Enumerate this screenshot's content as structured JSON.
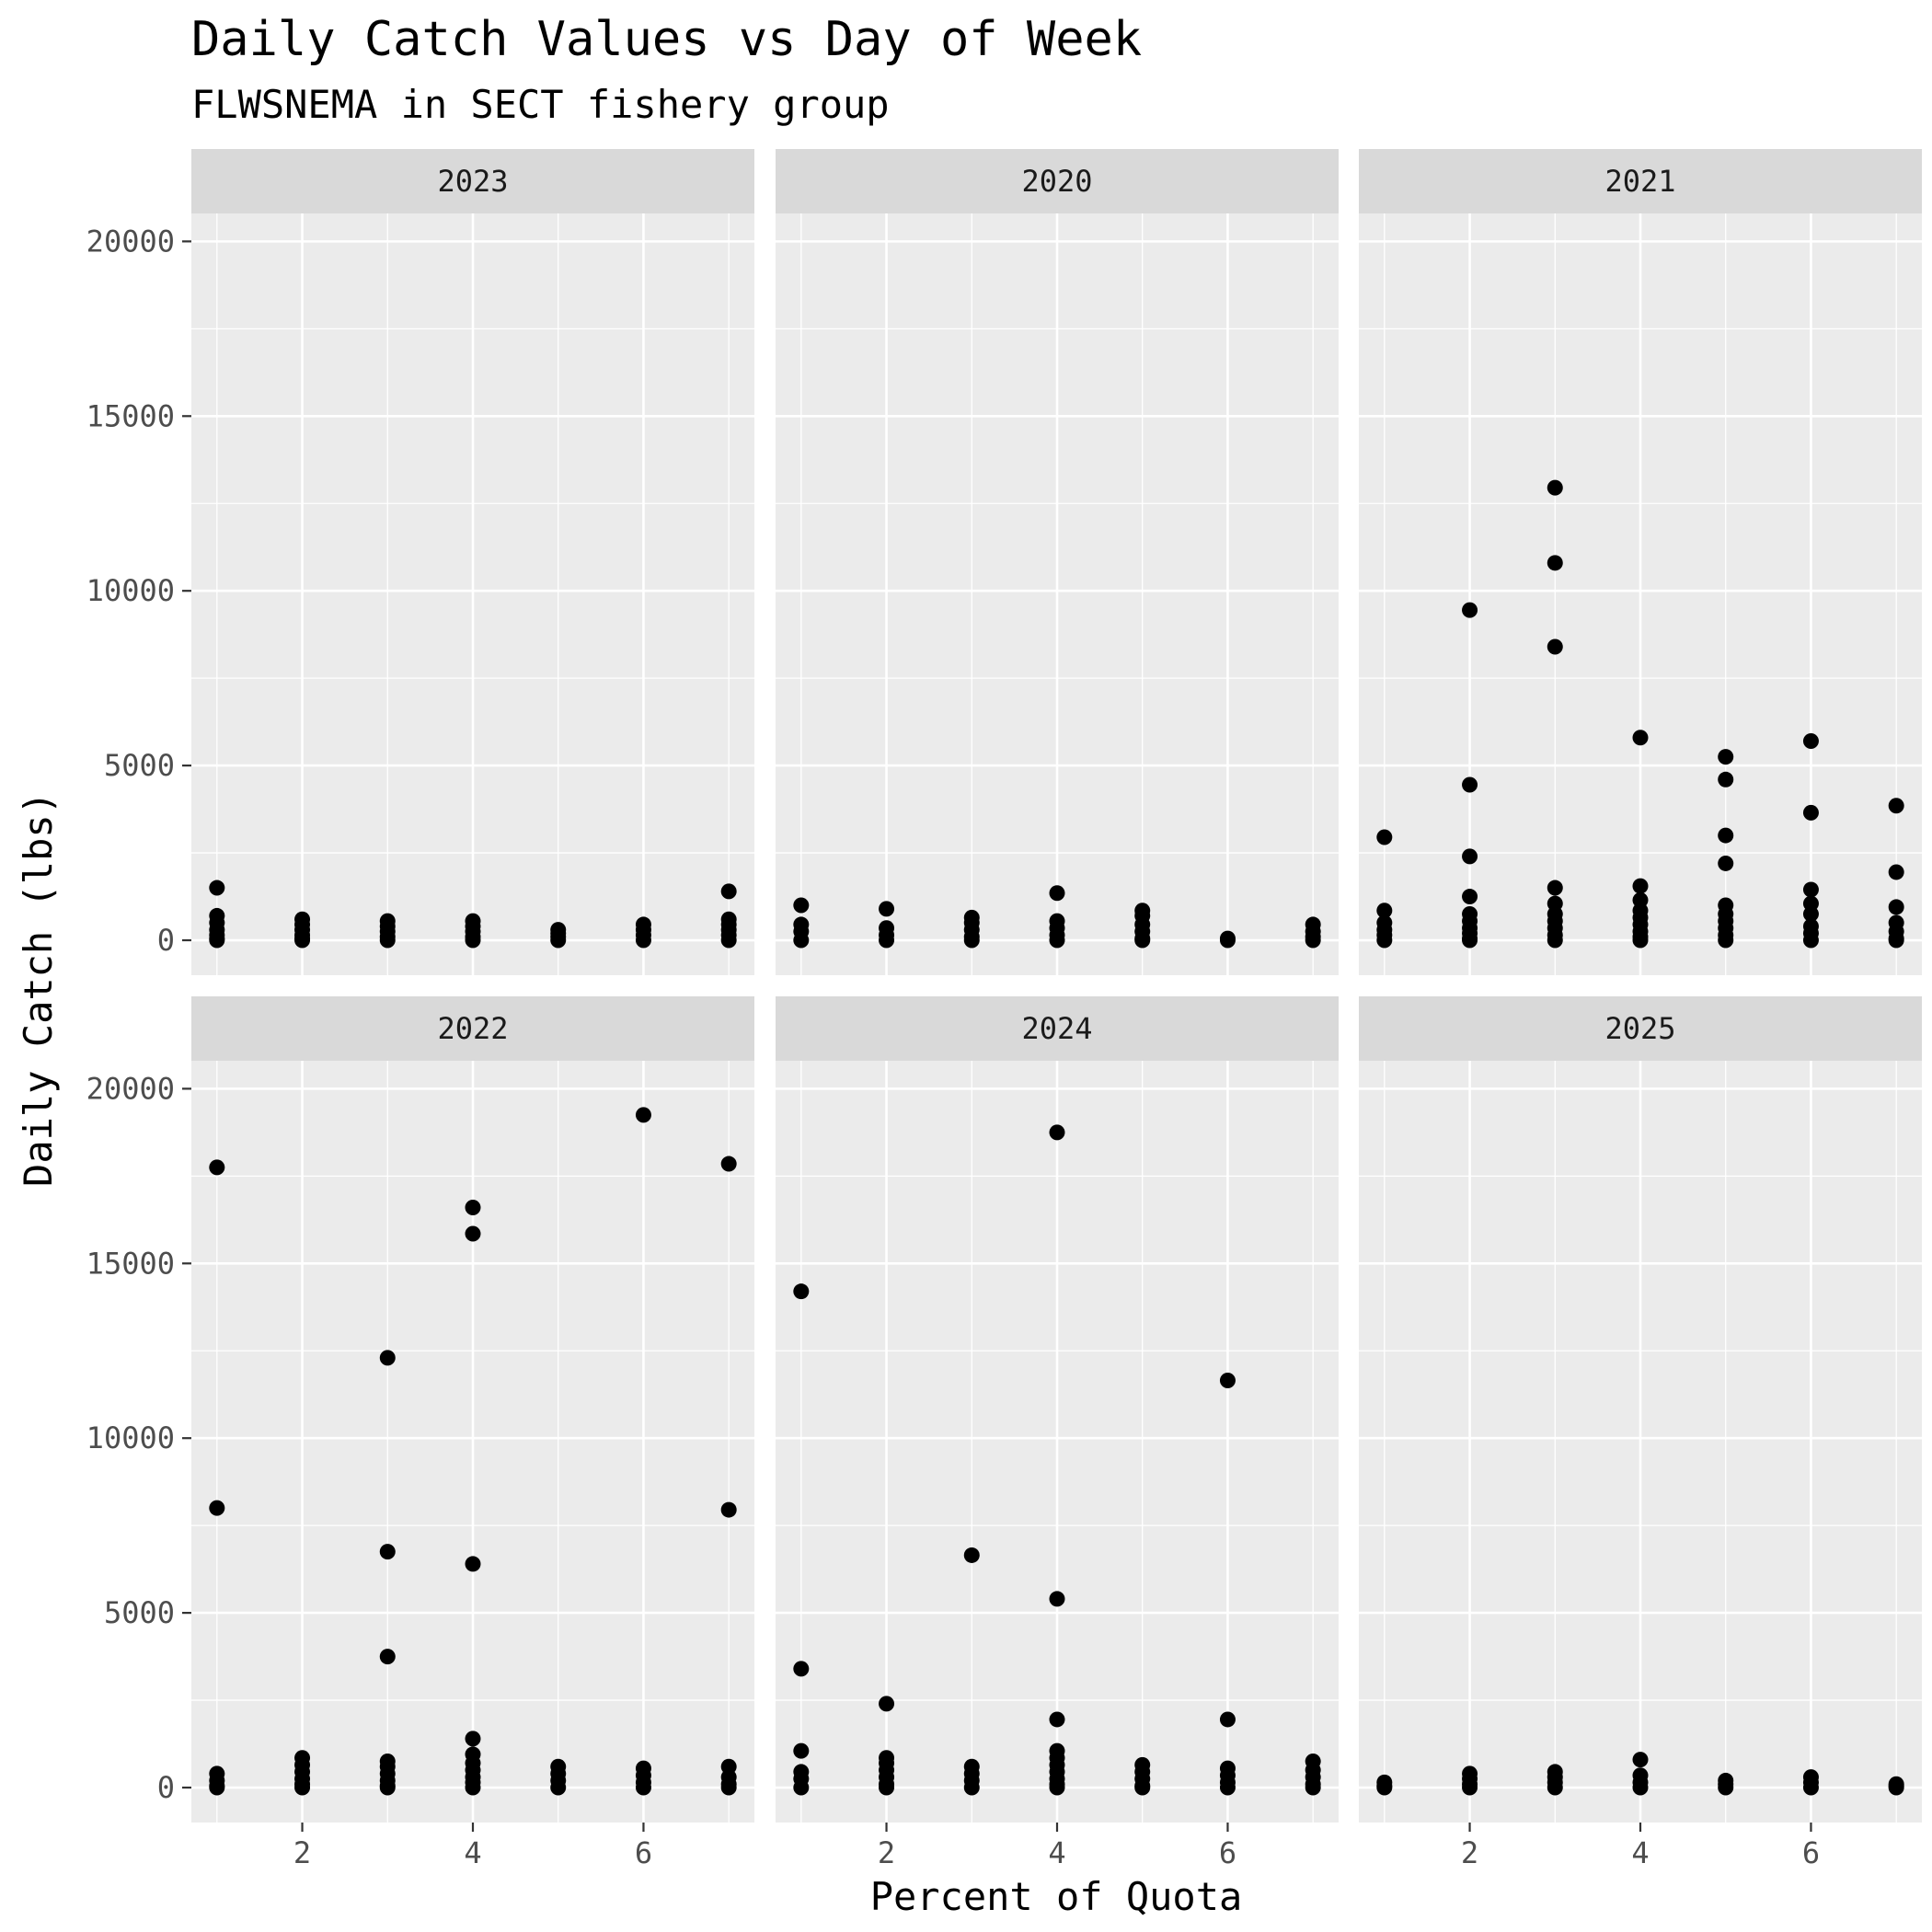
{
  "chart_data": {
    "type": "scatter",
    "title": "Daily Catch Values vs Day of Week",
    "subtitle": "FLWSNEMA in SECT fishery group",
    "xlabel": "Percent of Quota",
    "ylabel": "Daily Catch (lbs)",
    "xlim": [
      0.7,
      7.3
    ],
    "ylim": [
      -1000,
      20800
    ],
    "x_ticks": [
      2,
      4,
      6
    ],
    "y_ticks": [
      0,
      5000,
      10000,
      15000,
      20000
    ],
    "grid": true,
    "layout": "facets 2 rows x 3 columns",
    "colors": {
      "panel_bg": "#ebebeb",
      "strip_bg": "#d9d9d9",
      "grid": "#ffffff",
      "point": "#000000"
    },
    "panels": [
      {
        "label": "2023",
        "points": [
          [
            1,
            1500
          ],
          [
            1,
            700
          ],
          [
            1,
            500
          ],
          [
            1,
            300
          ],
          [
            1,
            150
          ],
          [
            1,
            50
          ],
          [
            1,
            0
          ],
          [
            2,
            600
          ],
          [
            2,
            450
          ],
          [
            2,
            300
          ],
          [
            2,
            150
          ],
          [
            2,
            50
          ],
          [
            2,
            0
          ],
          [
            3,
            550
          ],
          [
            3,
            400
          ],
          [
            3,
            250
          ],
          [
            3,
            100
          ],
          [
            3,
            0
          ],
          [
            4,
            550
          ],
          [
            4,
            400
          ],
          [
            4,
            250
          ],
          [
            4,
            100
          ],
          [
            4,
            0
          ],
          [
            5,
            300
          ],
          [
            5,
            200
          ],
          [
            5,
            100
          ],
          [
            5,
            0
          ],
          [
            6,
            450
          ],
          [
            6,
            300
          ],
          [
            6,
            150
          ],
          [
            6,
            0
          ],
          [
            7,
            1400
          ],
          [
            7,
            600
          ],
          [
            7,
            450
          ],
          [
            7,
            300
          ],
          [
            7,
            150
          ],
          [
            7,
            0
          ]
        ]
      },
      {
        "label": "2020",
        "points": [
          [
            1,
            1000
          ],
          [
            1,
            450
          ],
          [
            1,
            250
          ],
          [
            1,
            0
          ],
          [
            2,
            900
          ],
          [
            2,
            350
          ],
          [
            2,
            150
          ],
          [
            2,
            0
          ],
          [
            3,
            650
          ],
          [
            3,
            500
          ],
          [
            3,
            300
          ],
          [
            3,
            100
          ],
          [
            3,
            0
          ],
          [
            4,
            1350
          ],
          [
            4,
            550
          ],
          [
            4,
            350
          ],
          [
            4,
            150
          ],
          [
            4,
            0
          ],
          [
            5,
            850
          ],
          [
            5,
            700
          ],
          [
            5,
            450
          ],
          [
            5,
            250
          ],
          [
            5,
            50
          ],
          [
            5,
            0
          ],
          [
            6,
            50
          ],
          [
            6,
            0
          ],
          [
            7,
            450
          ],
          [
            7,
            250
          ],
          [
            7,
            100
          ],
          [
            7,
            0
          ]
        ]
      },
      {
        "label": "2021",
        "points": [
          [
            1,
            2950
          ],
          [
            1,
            850
          ],
          [
            1,
            500
          ],
          [
            1,
            300
          ],
          [
            1,
            150
          ],
          [
            1,
            0
          ],
          [
            2,
            9450
          ],
          [
            2,
            4450
          ],
          [
            2,
            2400
          ],
          [
            2,
            1250
          ],
          [
            2,
            750
          ],
          [
            2,
            550
          ],
          [
            2,
            350
          ],
          [
            2,
            200
          ],
          [
            2,
            50
          ],
          [
            2,
            0
          ],
          [
            3,
            12950
          ],
          [
            3,
            10800
          ],
          [
            3,
            8400
          ],
          [
            3,
            1500
          ],
          [
            3,
            1050
          ],
          [
            3,
            750
          ],
          [
            3,
            550
          ],
          [
            3,
            350
          ],
          [
            3,
            150
          ],
          [
            3,
            0
          ],
          [
            4,
            5800
          ],
          [
            4,
            1550
          ],
          [
            4,
            1150
          ],
          [
            4,
            850
          ],
          [
            4,
            650
          ],
          [
            4,
            450
          ],
          [
            4,
            250
          ],
          [
            4,
            100
          ],
          [
            4,
            0
          ],
          [
            5,
            5250
          ],
          [
            5,
            4600
          ],
          [
            5,
            3000
          ],
          [
            5,
            2200
          ],
          [
            5,
            1000
          ],
          [
            5,
            750
          ],
          [
            5,
            550
          ],
          [
            5,
            350
          ],
          [
            5,
            150
          ],
          [
            5,
            0
          ],
          [
            6,
            5700
          ],
          [
            6,
            3650
          ],
          [
            6,
            1450
          ],
          [
            6,
            1050
          ],
          [
            6,
            750
          ],
          [
            6,
            400
          ],
          [
            6,
            200
          ],
          [
            6,
            0
          ],
          [
            7,
            3850
          ],
          [
            7,
            1950
          ],
          [
            7,
            950
          ],
          [
            7,
            500
          ],
          [
            7,
            250
          ],
          [
            7,
            50
          ],
          [
            7,
            0
          ]
        ]
      },
      {
        "label": "2022",
        "points": [
          [
            1,
            17750
          ],
          [
            1,
            8000
          ],
          [
            1,
            400
          ],
          [
            1,
            200
          ],
          [
            1,
            50
          ],
          [
            1,
            0
          ],
          [
            2,
            850
          ],
          [
            2,
            650
          ],
          [
            2,
            450
          ],
          [
            2,
            250
          ],
          [
            2,
            100
          ],
          [
            2,
            0
          ],
          [
            3,
            12300
          ],
          [
            3,
            6750
          ],
          [
            3,
            3750
          ],
          [
            3,
            750
          ],
          [
            3,
            600
          ],
          [
            3,
            400
          ],
          [
            3,
            200
          ],
          [
            3,
            50
          ],
          [
            3,
            0
          ],
          [
            4,
            16600
          ],
          [
            4,
            15850
          ],
          [
            4,
            6400
          ],
          [
            4,
            1400
          ],
          [
            4,
            950
          ],
          [
            4,
            700
          ],
          [
            4,
            500
          ],
          [
            4,
            300
          ],
          [
            4,
            150
          ],
          [
            4,
            0
          ],
          [
            5,
            600
          ],
          [
            5,
            400
          ],
          [
            5,
            200
          ],
          [
            5,
            0
          ],
          [
            6,
            19250
          ],
          [
            6,
            550
          ],
          [
            6,
            350
          ],
          [
            6,
            150
          ],
          [
            6,
            0
          ],
          [
            7,
            17850
          ],
          [
            7,
            7950
          ],
          [
            7,
            600
          ],
          [
            7,
            300
          ],
          [
            7,
            100
          ],
          [
            7,
            0
          ]
        ]
      },
      {
        "label": "2024",
        "points": [
          [
            1,
            14200
          ],
          [
            1,
            3400
          ],
          [
            1,
            1050
          ],
          [
            1,
            450
          ],
          [
            1,
            250
          ],
          [
            1,
            0
          ],
          [
            2,
            2400
          ],
          [
            2,
            850
          ],
          [
            2,
            700
          ],
          [
            2,
            500
          ],
          [
            2,
            300
          ],
          [
            2,
            100
          ],
          [
            2,
            0
          ],
          [
            3,
            6650
          ],
          [
            3,
            600
          ],
          [
            3,
            400
          ],
          [
            3,
            200
          ],
          [
            3,
            0
          ],
          [
            4,
            18750
          ],
          [
            4,
            5400
          ],
          [
            4,
            1950
          ],
          [
            4,
            1050
          ],
          [
            4,
            850
          ],
          [
            4,
            650
          ],
          [
            4,
            450
          ],
          [
            4,
            250
          ],
          [
            4,
            100
          ],
          [
            4,
            0
          ],
          [
            5,
            650
          ],
          [
            5,
            450
          ],
          [
            5,
            250
          ],
          [
            5,
            50
          ],
          [
            5,
            0
          ],
          [
            6,
            11650
          ],
          [
            6,
            1950
          ],
          [
            6,
            550
          ],
          [
            6,
            350
          ],
          [
            6,
            150
          ],
          [
            6,
            0
          ],
          [
            7,
            750
          ],
          [
            7,
            500
          ],
          [
            7,
            300
          ],
          [
            7,
            100
          ],
          [
            7,
            0
          ]
        ]
      },
      {
        "label": "2025",
        "points": [
          [
            1,
            150
          ],
          [
            1,
            50
          ],
          [
            1,
            0
          ],
          [
            2,
            400
          ],
          [
            2,
            250
          ],
          [
            2,
            100
          ],
          [
            2,
            0
          ],
          [
            3,
            450
          ],
          [
            3,
            300
          ],
          [
            3,
            150
          ],
          [
            3,
            0
          ],
          [
            4,
            800
          ],
          [
            4,
            350
          ],
          [
            4,
            150
          ],
          [
            4,
            0
          ],
          [
            5,
            200
          ],
          [
            5,
            100
          ],
          [
            5,
            0
          ],
          [
            6,
            300
          ],
          [
            6,
            150
          ],
          [
            6,
            0
          ],
          [
            7,
            100
          ],
          [
            7,
            50
          ],
          [
            7,
            0
          ]
        ]
      }
    ]
  }
}
